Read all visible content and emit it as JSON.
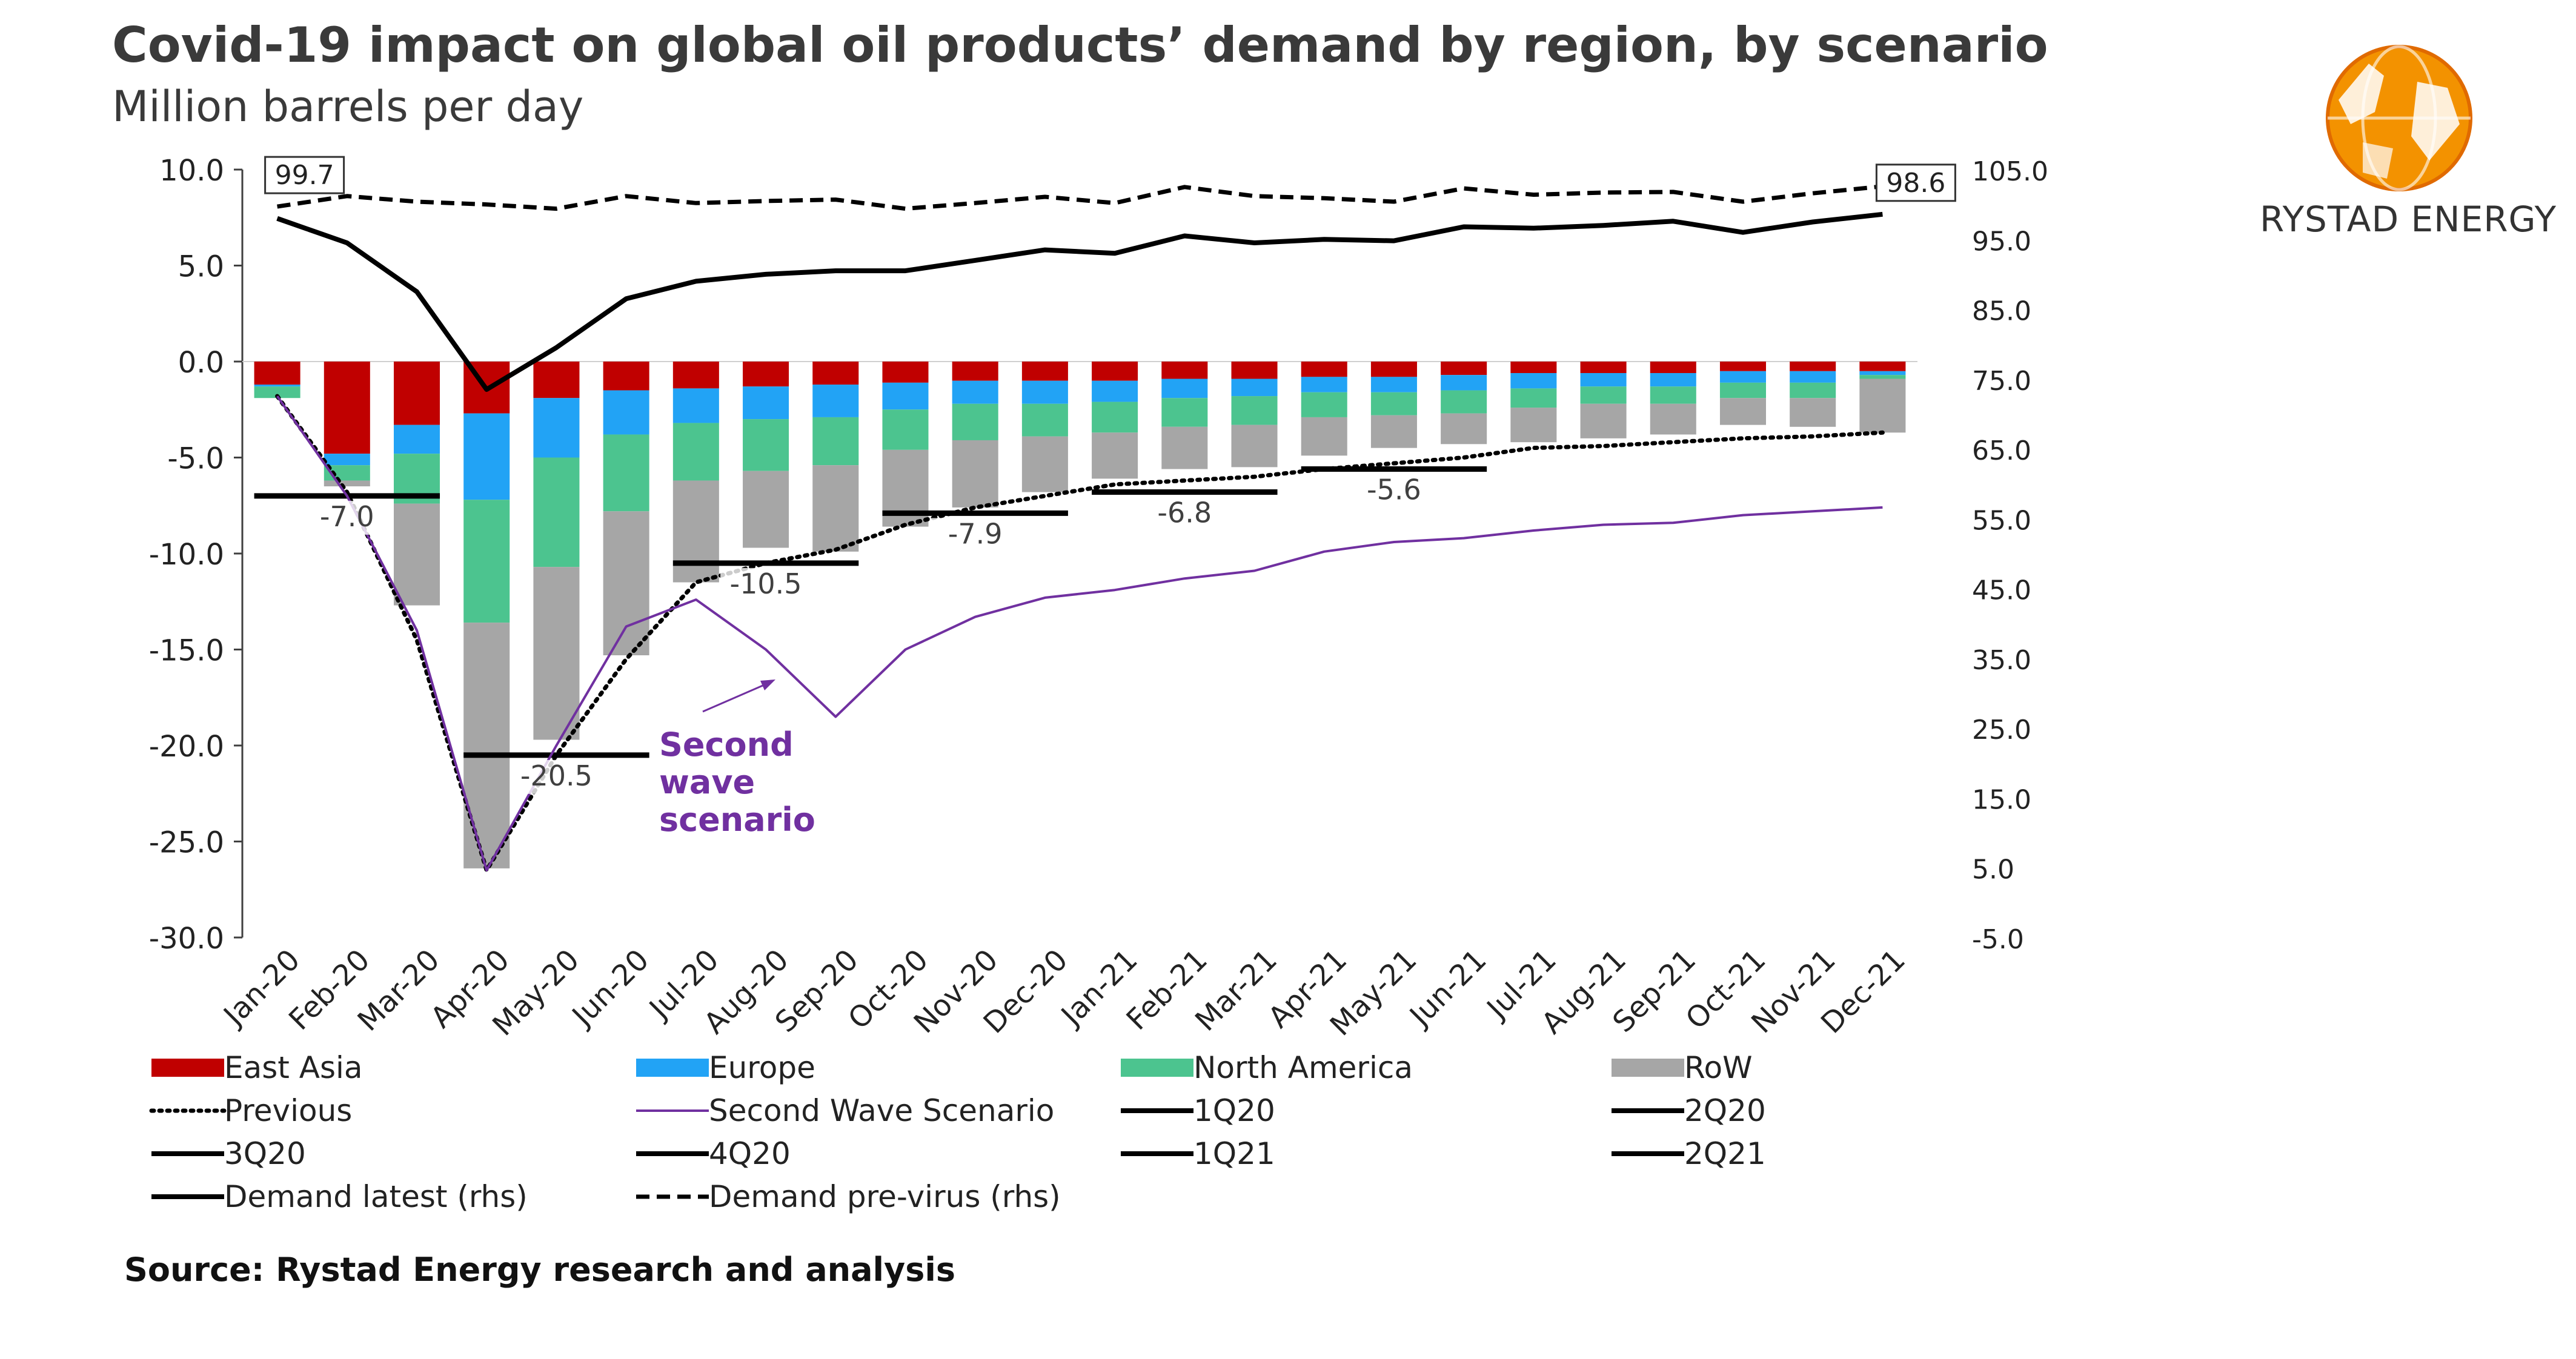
{
  "header": {
    "title": "Covid-19 impact on global oil products’ demand by region, by scenario",
    "subtitle": "Million barrels per day"
  },
  "logo": {
    "icon": "rystad-globe-icon",
    "text": "RYSTAD ENERGY"
  },
  "source": "Source: Rystad Energy research and analysis",
  "chart_data": {
    "type": "bar",
    "stacked": true,
    "categories": [
      "Jan-20",
      "Feb-20",
      "Mar-20",
      "Apr-20",
      "May-20",
      "Jun-20",
      "Jul-20",
      "Aug-20",
      "Sep-20",
      "Oct-20",
      "Nov-20",
      "Dec-20",
      "Jan-21",
      "Feb-21",
      "Mar-21",
      "Apr-21",
      "May-21",
      "Jun-21",
      "Jul-21",
      "Aug-21",
      "Sep-21",
      "Oct-21",
      "Nov-21",
      "Dec-21"
    ],
    "ylim": [
      -30,
      10
    ],
    "yticks": [
      10,
      5,
      0,
      -5,
      -10,
      -15,
      -20,
      -25,
      -30
    ],
    "ytick_labels": [
      "10.0",
      "5.0",
      "0.0",
      "-5.0",
      "-10.0",
      "-15.0",
      "-20.0",
      "-25.0",
      "-30.0"
    ],
    "y2lim": [
      -5,
      105
    ],
    "y2ticks": [
      105,
      95,
      85,
      75,
      65,
      55,
      45,
      35,
      25,
      15,
      5,
      -5
    ],
    "y2tick_labels": [
      "105.0",
      "95.0",
      "85.0",
      "75.0",
      "65.0",
      "55.0",
      "45.0",
      "35.0",
      "25.0",
      "15.0",
      "5.0",
      "-5.0"
    ],
    "bar_series": [
      {
        "name": "East Asia",
        "color": "#c00000",
        "values": [
          -1.2,
          -4.8,
          -3.3,
          -2.7,
          -1.9,
          -1.5,
          -1.4,
          -1.3,
          -1.2,
          -1.1,
          -1.0,
          -1.0,
          -1.0,
          -0.9,
          -0.9,
          -0.8,
          -0.8,
          -0.7,
          -0.6,
          -0.6,
          -0.6,
          -0.5,
          -0.5,
          -0.5
        ]
      },
      {
        "name": "Europe",
        "color": "#22a3f5",
        "values": [
          -0.1,
          -0.6,
          -1.5,
          -4.5,
          -3.1,
          -2.3,
          -1.8,
          -1.7,
          -1.7,
          -1.4,
          -1.2,
          -1.2,
          -1.1,
          -1.0,
          -0.9,
          -0.8,
          -0.8,
          -0.8,
          -0.8,
          -0.7,
          -0.7,
          -0.6,
          -0.6,
          -0.2
        ]
      },
      {
        "name": "North America",
        "color": "#4cc48f",
        "values": [
          -0.6,
          -0.8,
          -2.6,
          -6.4,
          -5.7,
          -4.0,
          -3.0,
          -2.7,
          -2.5,
          -2.1,
          -1.9,
          -1.7,
          -1.6,
          -1.5,
          -1.5,
          -1.3,
          -1.2,
          -1.2,
          -1.0,
          -0.9,
          -0.9,
          -0.8,
          -0.8,
          -0.2
        ]
      },
      {
        "name": "RoW",
        "color": "#a6a6a6",
        "values": [
          0.0,
          -0.3,
          -5.3,
          -12.8,
          -9.0,
          -7.5,
          -5.3,
          -4.0,
          -4.5,
          -4.0,
          -3.5,
          -2.9,
          -2.4,
          -2.2,
          -2.2,
          -2.0,
          -1.7,
          -1.6,
          -1.8,
          -1.8,
          -1.6,
          -1.4,
          -1.5,
          -2.8
        ]
      }
    ],
    "line_series": [
      {
        "name": "Previous",
        "axis": "left",
        "style": "dotted",
        "color": "#000000",
        "values": [
          -1.8,
          -6.8,
          -14.5,
          -26.5,
          -20.5,
          -15.5,
          -11.5,
          -10.5,
          -9.8,
          -8.5,
          -7.6,
          -7.0,
          -6.4,
          -6.2,
          -6.0,
          -5.6,
          -5.3,
          -5.0,
          -4.5,
          -4.4,
          -4.2,
          -4.0,
          -3.9,
          -3.7
        ]
      },
      {
        "name": "Second Wave Scenario",
        "axis": "left",
        "style": "solid-thin",
        "color": "#7030a0",
        "values": [
          -1.8,
          -7.0,
          -14.0,
          -26.5,
          -20.0,
          -13.8,
          -12.4,
          -15.0,
          -18.5,
          -15.0,
          -13.3,
          -12.3,
          -11.9,
          -11.3,
          -10.9,
          -9.9,
          -9.4,
          -9.2,
          -8.8,
          -8.5,
          -8.4,
          -8.0,
          -7.8,
          -7.6
        ]
      },
      {
        "name": "Demand latest (rhs)",
        "axis": "right",
        "style": "solid",
        "color": "#000000",
        "values": [
          98.0,
          94.5,
          87.5,
          73.5,
          79.5,
          86.5,
          89.0,
          90.0,
          90.5,
          90.5,
          92.0,
          93.5,
          93.0,
          95.5,
          94.5,
          95.0,
          94.8,
          96.8,
          96.6,
          97.0,
          97.6,
          96.0,
          97.5,
          98.6
        ]
      },
      {
        "name": "Demand pre-virus (rhs)",
        "axis": "right",
        "style": "dashed",
        "color": "#000000",
        "values": [
          99.7,
          101.2,
          100.4,
          100.0,
          99.4,
          101.2,
          100.2,
          100.5,
          100.7,
          99.4,
          100.2,
          101.1,
          100.2,
          102.5,
          101.2,
          100.9,
          100.4,
          102.3,
          101.4,
          101.7,
          101.8,
          100.4,
          101.6,
          102.6
        ]
      }
    ],
    "quarter_averages": [
      {
        "name": "1Q20",
        "value": -7.0,
        "months": [
          0,
          2
        ],
        "label": "-7.0"
      },
      {
        "name": "2Q20",
        "value": -20.5,
        "months": [
          3,
          5
        ],
        "label": "-20.5"
      },
      {
        "name": "3Q20",
        "value": -10.5,
        "months": [
          6,
          8
        ],
        "label": "-10.5"
      },
      {
        "name": "4Q20",
        "value": -7.9,
        "months": [
          9,
          11
        ],
        "label": "-7.9"
      },
      {
        "name": "1Q21",
        "value": -6.8,
        "months": [
          12,
          14
        ],
        "label": "-6.8"
      },
      {
        "name": "2Q21",
        "value": -5.6,
        "months": [
          15,
          17
        ],
        "label": "-5.6"
      }
    ],
    "value_labels": [
      {
        "text": "99.7",
        "series": "Demand pre-virus (rhs)",
        "index": 0
      },
      {
        "text": "98.6",
        "series": "Demand latest (rhs)",
        "index": 23
      }
    ],
    "annotation": {
      "lines": [
        "Second",
        "wave",
        "scenario"
      ],
      "color": "#7030a0"
    },
    "legend": {
      "position": "bottom",
      "entries": [
        {
          "label": "East Asia",
          "kind": "box",
          "color": "#c00000"
        },
        {
          "label": "Europe",
          "kind": "box",
          "color": "#22a3f5"
        },
        {
          "label": "North America",
          "kind": "box",
          "color": "#4cc48f"
        },
        {
          "label": "RoW",
          "kind": "box",
          "color": "#a6a6a6"
        },
        {
          "label": "Previous",
          "kind": "dotted",
          "color": "#000000"
        },
        {
          "label": "Second Wave Scenario",
          "kind": "thin",
          "color": "#7030a0"
        },
        {
          "label": "1Q20",
          "kind": "solid",
          "color": "#000000"
        },
        {
          "label": "2Q20",
          "kind": "solid",
          "color": "#000000"
        },
        {
          "label": "3Q20",
          "kind": "solid",
          "color": "#000000"
        },
        {
          "label": "4Q20",
          "kind": "solid",
          "color": "#000000"
        },
        {
          "label": "1Q21",
          "kind": "solid",
          "color": "#000000"
        },
        {
          "label": "2Q21",
          "kind": "solid",
          "color": "#000000"
        },
        {
          "label": "Demand latest (rhs)",
          "kind": "solid",
          "color": "#000000"
        },
        {
          "label": "Demand pre-virus (rhs)",
          "kind": "dashed",
          "color": "#000000"
        }
      ]
    }
  }
}
